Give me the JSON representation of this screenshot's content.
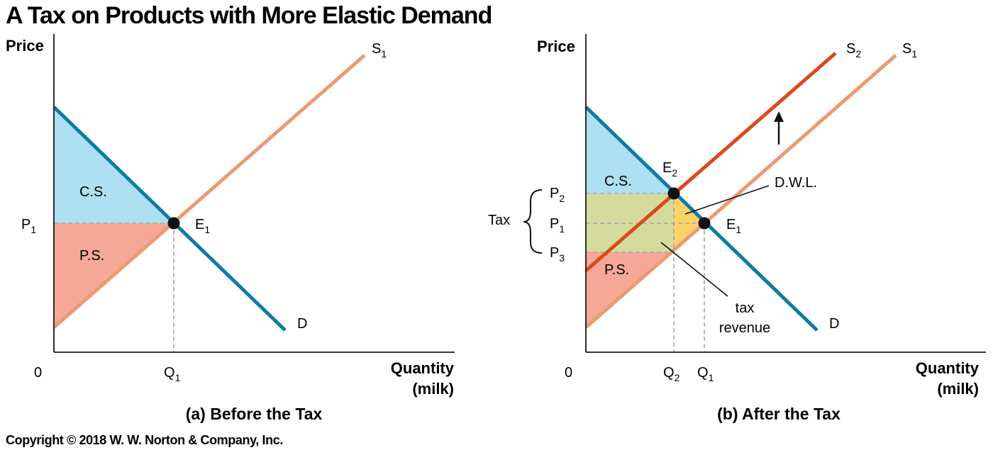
{
  "title": "A Tax on Products with More Elastic Demand",
  "copyright": "Copyright © 2018 W. W. Norton & Company, Inc.",
  "colors": {
    "demand": "#0f7aa6",
    "supply": "#ec9a72",
    "supply_taxed": "#d94a1a",
    "consumer_surplus": "#ace0f2",
    "producer_surplus": "#f6a898",
    "tax_revenue": "#d5db9c",
    "deadweight_loss": "#fdd267"
  },
  "chart_data": [
    {
      "type": "line",
      "caption": "(a) Before the Tax",
      "ylabel": "Price",
      "xlabel": "Quantity",
      "xlabel2": "(milk)",
      "origin": "0",
      "xlim": [
        0,
        10
      ],
      "ylim": [
        0,
        10
      ],
      "series": [
        {
          "name": "D",
          "points": [
            [
              0,
              8.5
            ],
            [
              6.5,
              0.8
            ]
          ]
        },
        {
          "name": "S",
          "sub": "1",
          "points": [
            [
              0,
              0.8
            ],
            [
              8.7,
              10.5
            ]
          ]
        }
      ],
      "equilibrium": {
        "label": "E",
        "sub": "1",
        "x": 3.3,
        "y": 4.6
      },
      "ticks_x": [
        {
          "label": "Q",
          "sub": "1",
          "value": 3.3
        }
      ],
      "ticks_y": [
        {
          "label": "P",
          "sub": "1",
          "value": 4.6
        }
      ],
      "regions": [
        {
          "label": "C.S.",
          "points": [
            [
              0,
              4.6
            ],
            [
              0,
              8.5
            ],
            [
              3.3,
              4.6
            ]
          ]
        },
        {
          "label": "P.S.",
          "points": [
            [
              0,
              0.8
            ],
            [
              0,
              4.6
            ],
            [
              3.3,
              4.6
            ]
          ]
        }
      ]
    },
    {
      "type": "line",
      "caption": "(b) After the Tax",
      "ylabel": "Price",
      "xlabel": "Quantity",
      "xlabel2": "(milk)",
      "origin": "0",
      "xlim": [
        0,
        10
      ],
      "ylim": [
        0,
        10
      ],
      "series": [
        {
          "name": "D",
          "points": [
            [
              0,
              8.5
            ],
            [
              6.5,
              0.8
            ]
          ]
        },
        {
          "name": "S",
          "sub": "1",
          "points": [
            [
              0,
              0.8
            ],
            [
              8.7,
              10.5
            ]
          ]
        },
        {
          "name": "S",
          "sub": "2",
          "points": [
            [
              0,
              2.8
            ],
            [
              7.1,
              10.5
            ]
          ]
        }
      ],
      "equilibria": [
        {
          "label": "E",
          "sub": "1",
          "x": 3.3,
          "y": 4.6
        },
        {
          "label": "E",
          "sub": "2",
          "x": 2.4,
          "y": 5.7
        }
      ],
      "ticks_x": [
        {
          "label": "Q",
          "sub": "2",
          "value": 2.4
        },
        {
          "label": "Q",
          "sub": "1",
          "value": 3.3
        }
      ],
      "ticks_y": [
        {
          "label": "P",
          "sub": "2",
          "value": 5.7
        },
        {
          "label": "P",
          "sub": "1",
          "value": 4.6
        },
        {
          "label": "P",
          "sub": "3",
          "value": 3.6
        }
      ],
      "regions": [
        {
          "label": "C.S.",
          "points": [
            [
              0,
              5.7
            ],
            [
              0,
              8.5
            ],
            [
              2.4,
              5.7
            ]
          ]
        },
        {
          "label": "P.S.",
          "points": [
            [
              0,
              0.8
            ],
            [
              0,
              3.6
            ],
            [
              2.4,
              3.6
            ]
          ]
        },
        {
          "label": "tax revenue",
          "points": [
            [
              0,
              3.6
            ],
            [
              0,
              5.7
            ],
            [
              2.4,
              5.7
            ],
            [
              2.4,
              3.6
            ]
          ]
        },
        {
          "label": "D.W.L.",
          "points": [
            [
              2.4,
              5.7
            ],
            [
              3.3,
              4.6
            ],
            [
              2.4,
              3.6
            ]
          ]
        }
      ],
      "annotations": {
        "tax_bracket": "Tax",
        "dwl_label": "D.W.L.",
        "tax_revenue_line1": "tax",
        "tax_revenue_line2": "revenue",
        "shift_arrow": "up-arrow"
      }
    }
  ]
}
